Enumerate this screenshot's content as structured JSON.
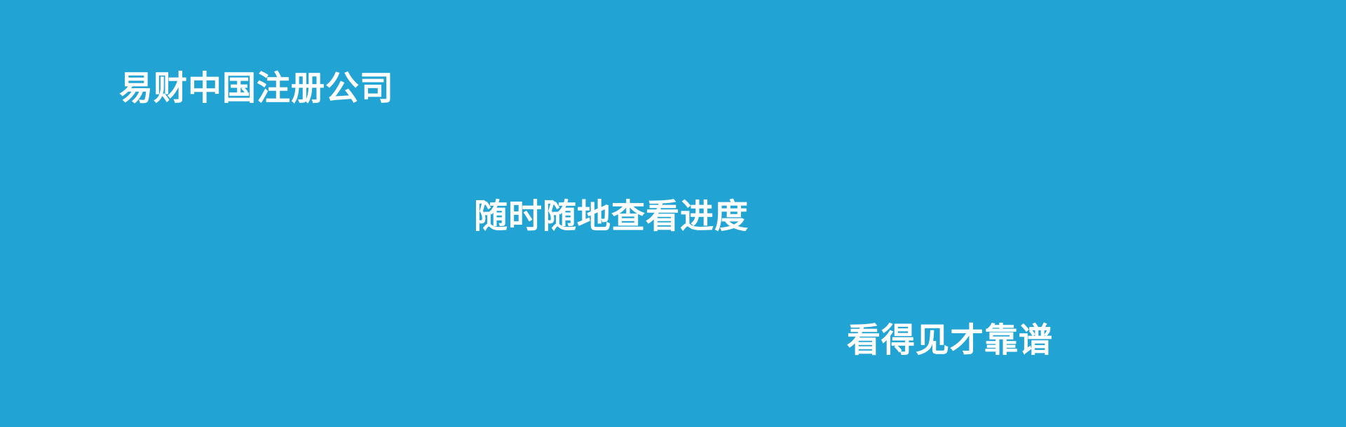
{
  "banner": {
    "background_color": "#21a3d3",
    "text_color": "#ffffff",
    "lines": [
      "易财中国注册公司",
      "随时随地查看进度",
      "看得见才靠谱"
    ]
  }
}
